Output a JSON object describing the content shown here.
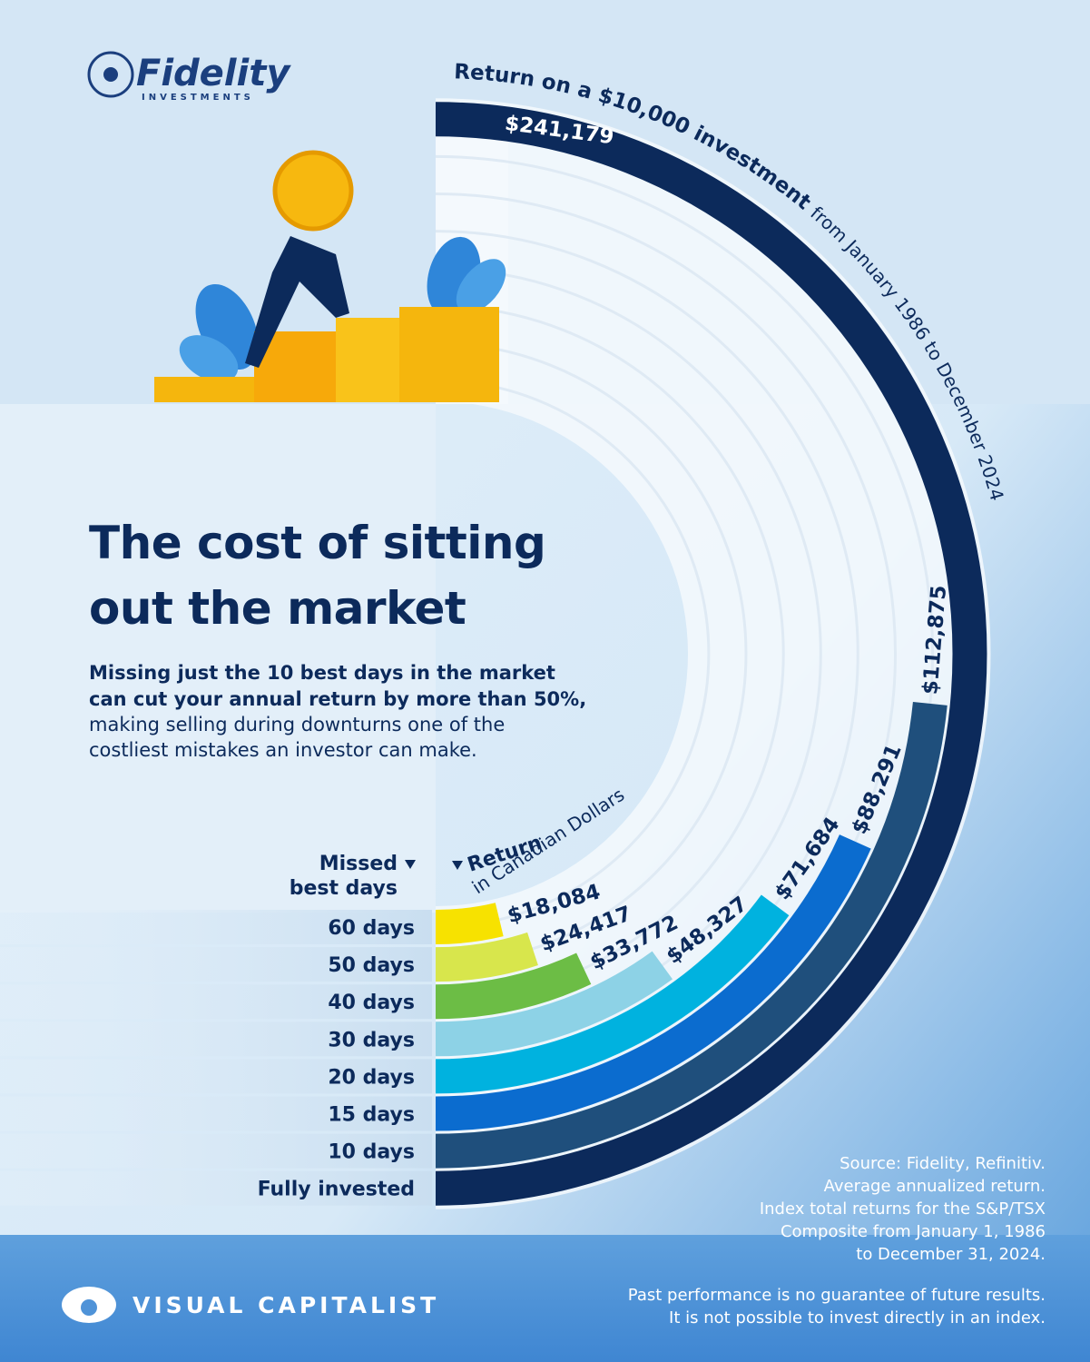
{
  "logo": {
    "name": "Fidelity",
    "sub": "INVESTMENTS"
  },
  "chart_data": {
    "type": "radial-bar",
    "title": [
      "The cost of sitting",
      "out the market"
    ],
    "subtitle_bold": [
      "Missing just the 10 best days in the market",
      "can cut your annual return by more than 50%,"
    ],
    "subtitle": [
      "making selling during downturns one of the",
      "costliest mistakes an investor can make."
    ],
    "arc_title": "Return on a $10,000 investment",
    "arc_subtitle": "from January 1986 to December 2024",
    "category_header": [
      "Missed",
      "best days"
    ],
    "value_header": [
      "Return",
      "in Canadian Dollars"
    ],
    "categories": [
      "60 days",
      "50 days",
      "40 days",
      "30 days",
      "20 days",
      "15 days",
      "10 days",
      "Fully invested"
    ],
    "values": [
      18084,
      24417,
      33772,
      48327,
      71684,
      88291,
      112875,
      241179
    ],
    "value_labels": [
      "$18,084",
      "$24,417",
      "$33,772",
      "$48,327",
      "$71,684",
      "$88,291",
      "$112,875",
      "$241,179"
    ],
    "colors": [
      "#f7e200",
      "#d8e64c",
      "#6cbd45",
      "#8dd2e6",
      "#00b2df",
      "#0b6ccf",
      "#1f4f7c",
      "#0c2a5b"
    ],
    "ylim": [
      0,
      241179
    ]
  },
  "notes": [
    "Source: Fidelity, Refinitiv.",
    "Average annualized return.",
    "Index total returns for the S&P/TSX",
    "Composite from January 1, 1986",
    "to December 31, 2024."
  ],
  "disclaimer": [
    "Past performance is no guarantee of future results.",
    "It is not possible to invest directly in an index."
  ],
  "brand": "VISUAL CAPITALIST"
}
